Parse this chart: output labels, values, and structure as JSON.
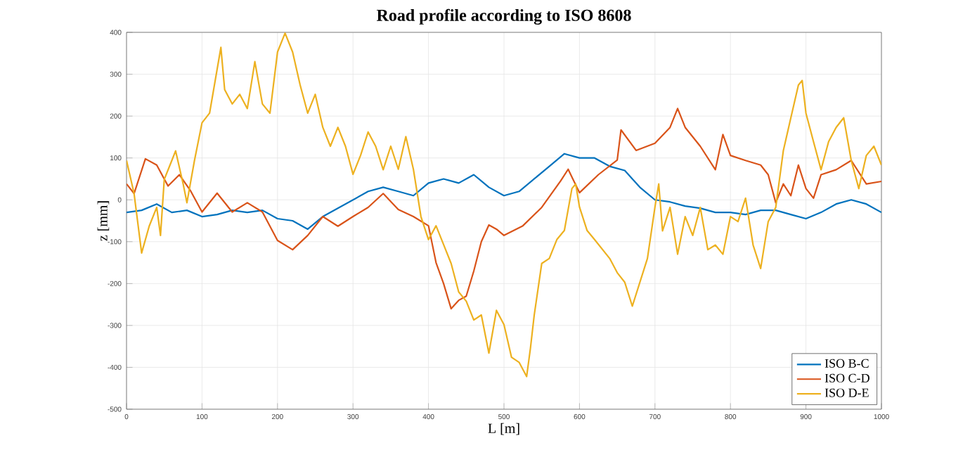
{
  "chart_data": {
    "type": "line",
    "title": "Road profile according to ISO 8608",
    "xlabel": "L  [m]",
    "ylabel": "z  [mm]",
    "xlim": [
      0,
      1000
    ],
    "ylim": [
      -500,
      400
    ],
    "xticks": [
      0,
      100,
      200,
      300,
      400,
      500,
      600,
      700,
      800,
      900,
      1000
    ],
    "yticks": [
      -500,
      -400,
      -300,
      -200,
      -100,
      0,
      100,
      200,
      300,
      400
    ],
    "grid": true,
    "legend": "bottom right",
    "line_style": "solid",
    "marker": "none",
    "series": [
      {
        "name": "ISO B-C",
        "color": "#0072bd",
        "x": [
          0,
          20,
          40,
          60,
          80,
          100,
          120,
          140,
          160,
          180,
          200,
          220,
          240,
          260,
          280,
          300,
          320,
          340,
          360,
          380,
          400,
          420,
          440,
          460,
          480,
          500,
          520,
          540,
          560,
          580,
          600,
          620,
          640,
          660,
          680,
          700,
          720,
          740,
          760,
          780,
          800,
          820,
          840,
          860,
          880,
          900,
          920,
          940,
          960,
          980,
          1000
        ],
        "values": [
          -30,
          -25,
          -10,
          -30,
          -25,
          -40,
          -35,
          -25,
          -30,
          -25,
          -45,
          -50,
          -70,
          -40,
          -20,
          0,
          20,
          30,
          20,
          10,
          40,
          50,
          40,
          60,
          30,
          10,
          20,
          50,
          80,
          110,
          100,
          100,
          80,
          70,
          30,
          0,
          -5,
          -15,
          -20,
          -30,
          -30,
          -35,
          -25,
          -25,
          -35,
          -45,
          -30,
          -10,
          0,
          -10,
          -30
        ]
      },
      {
        "name": "ISO C-D",
        "color": "#d95319",
        "x": [
          0,
          10,
          25,
          40,
          55,
          70,
          85,
          100,
          120,
          140,
          160,
          180,
          200,
          220,
          240,
          260,
          280,
          300,
          320,
          340,
          360,
          380,
          400,
          410,
          420,
          430,
          440,
          450,
          460,
          470,
          480,
          490,
          500,
          525,
          550,
          575,
          585,
          600,
          625,
          650,
          655,
          675,
          700,
          720,
          730,
          740,
          760,
          780,
          790,
          800,
          820,
          840,
          850,
          860,
          870,
          880,
          890,
          900,
          910,
          920,
          940,
          960,
          980,
          1000
        ],
        "values": [
          38,
          15,
          98,
          83,
          33,
          60,
          21,
          -29,
          16,
          -29,
          -7,
          -29,
          -97,
          -119,
          -85,
          -40,
          -63,
          -40,
          -18,
          15,
          -23,
          -40,
          -62,
          -150,
          -200,
          -260,
          -240,
          -230,
          -170,
          -100,
          -60,
          -70,
          -85,
          -62,
          -18,
          45,
          73,
          17,
          60,
          95,
          167,
          118,
          135,
          173,
          218,
          173,
          128,
          72,
          156,
          106,
          94,
          83,
          60,
          -7,
          38,
          10,
          83,
          27,
          4,
          60,
          72,
          94,
          38,
          44
        ]
      },
      {
        "name": "ISO D-E",
        "color": "#edb120",
        "x": [
          0,
          10,
          20,
          30,
          40,
          45,
          50,
          60,
          65,
          75,
          80,
          90,
          100,
          110,
          125,
          130,
          140,
          150,
          160,
          170,
          180,
          190,
          200,
          210,
          220,
          230,
          240,
          250,
          260,
          270,
          280,
          290,
          300,
          310,
          320,
          330,
          340,
          350,
          360,
          370,
          380,
          390,
          400,
          410,
          420,
          430,
          440,
          450,
          460,
          470,
          480,
          490,
          500,
          510,
          520,
          530,
          535,
          540,
          550,
          560,
          570,
          580,
          590,
          595,
          600,
          610,
          620,
          640,
          650,
          660,
          670,
          680,
          690,
          700,
          705,
          710,
          720,
          730,
          740,
          750,
          760,
          770,
          780,
          790,
          800,
          810,
          820,
          830,
          840,
          850,
          860,
          870,
          880,
          890,
          895,
          900,
          910,
          920,
          930,
          940,
          950,
          960,
          970,
          980,
          990,
          1000
        ],
        "values": [
          94,
          15,
          -127,
          -63,
          -18,
          -85,
          49,
          94,
          117,
          38,
          -7,
          94,
          184,
          207,
          364,
          263,
          229,
          252,
          218,
          330,
          229,
          207,
          353,
          398,
          353,
          274,
          207,
          252,
          173,
          128,
          173,
          128,
          61,
          106,
          162,
          128,
          72,
          128,
          73,
          151,
          73,
          -40,
          -95,
          -62,
          -107,
          -152,
          -220,
          -242,
          -287,
          -275,
          -366,
          -264,
          -298,
          -376,
          -388,
          -422,
          -355,
          -276,
          -152,
          -140,
          -95,
          -73,
          27,
          38,
          -17,
          -73,
          -95,
          -140,
          -174,
          -197,
          -254,
          -197,
          -140,
          -17,
          38,
          -74,
          -18,
          -130,
          -40,
          -85,
          -18,
          -119,
          -108,
          -130,
          -40,
          -52,
          4,
          -108,
          -164,
          -52,
          -18,
          117,
          196,
          274,
          285,
          207,
          139,
          72,
          139,
          173,
          196,
          94,
          27,
          106,
          128,
          83
        ]
      }
    ]
  }
}
